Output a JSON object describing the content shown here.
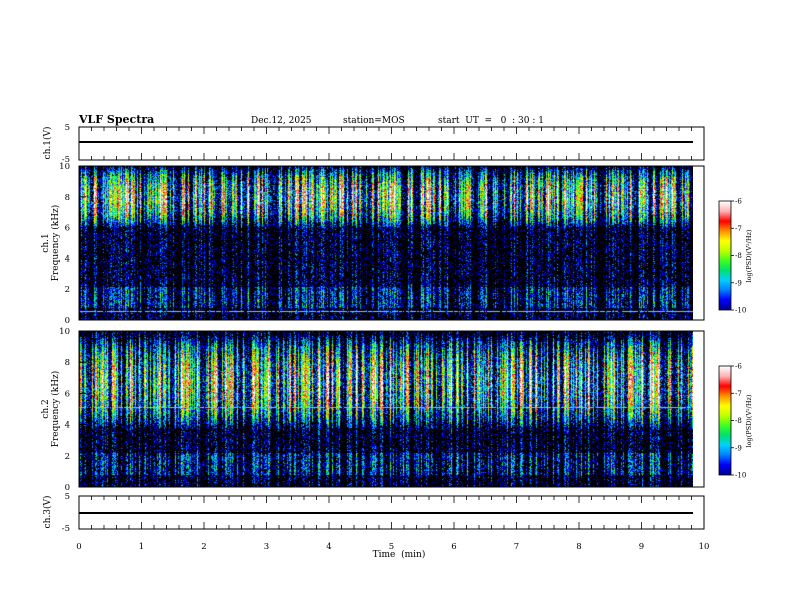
{
  "header": {
    "title": "VLF Spectra",
    "date": "Dec.12, 2025",
    "station": "station=MOS",
    "start": "start  UT  =   0  : 30 : 1"
  },
  "colors": {
    "spectrogram_background": "#000000",
    "colormap": [
      "#00008b",
      "#0000ff",
      "#0080ff",
      "#00d0ff",
      "#00e070",
      "#40ff20",
      "#c0ff00",
      "#ffff00",
      "#ff9000",
      "#ff0000",
      "#ffb0b0",
      "#ffffff"
    ]
  },
  "chart_data": [
    {
      "id": "ch1-waveform",
      "type": "line",
      "ylabel": "ch.1(V)",
      "ylim": [
        -5,
        5
      ],
      "yticks": [
        5,
        -5
      ],
      "xlim": [
        0,
        10
      ],
      "series": [
        {
          "name": "ch.1",
          "level": 0
        }
      ]
    },
    {
      "id": "ch1-spectrogram",
      "type": "heatmap",
      "ylabel_line1": "ch.1",
      "ylabel_line2": "Frequency (kHz)",
      "ylim": [
        0,
        10
      ],
      "yticks": [
        0,
        2,
        4,
        6,
        8,
        10
      ],
      "xlim": [
        0,
        9.83
      ],
      "value_range": [
        -10,
        -6
      ],
      "dominant_band_khz": [
        6.5,
        9.5
      ],
      "line_khz": 0.6,
      "colorbar": {
        "label": "log(PSD)(V²/Hz)",
        "ticks": [
          "-6",
          "-7",
          "-8",
          "-9",
          "-10"
        ]
      }
    },
    {
      "id": "ch2-spectrogram",
      "type": "heatmap",
      "ylabel_line1": "ch.2",
      "ylabel_line2": "Frequency (kHz)",
      "ylim": [
        0,
        10
      ],
      "yticks": [
        0,
        2,
        4,
        6,
        8,
        10
      ],
      "xlim": [
        0,
        9.83
      ],
      "value_range": [
        -10,
        -6
      ],
      "dominant_band_khz": [
        4.5,
        9.0
      ],
      "line_khz": 5.1,
      "colorbar": {
        "label": "log(PSD)(V²/Hz)",
        "ticks": [
          "-6",
          "-7",
          "-8",
          "-9",
          "-10"
        ]
      }
    },
    {
      "id": "ch3-waveform",
      "type": "line",
      "ylabel": "ch.3(V)",
      "ylim": [
        -5,
        5
      ],
      "yticks": [
        5,
        -5
      ],
      "xlim": [
        0,
        10
      ],
      "series": [
        {
          "name": "ch.3",
          "level": 0
        }
      ]
    }
  ],
  "x_axis": {
    "label": "Time  (min)",
    "ticks": [
      "0",
      "1",
      "2",
      "3",
      "4",
      "5",
      "6",
      "7",
      "8",
      "9",
      "10"
    ]
  }
}
